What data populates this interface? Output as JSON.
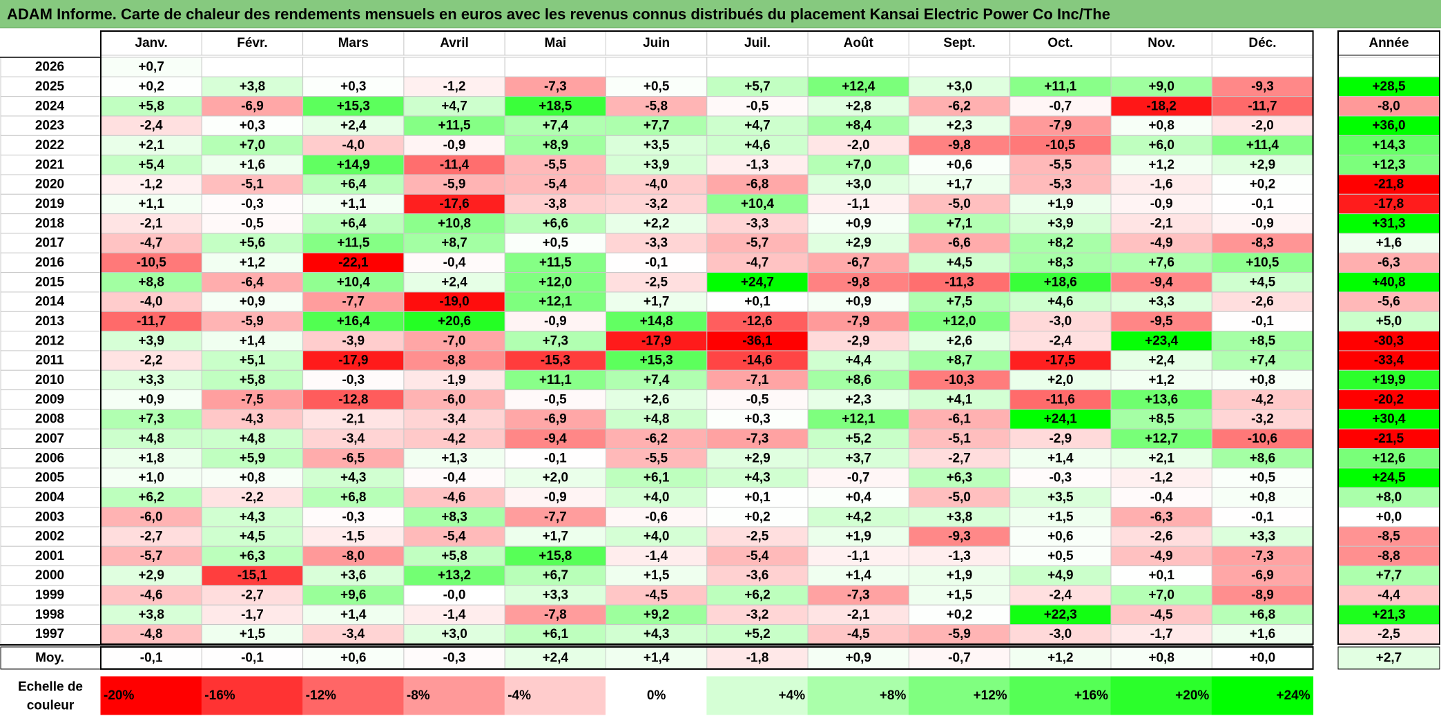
{
  "title": "ADAM Informe. Carte de chaleur des rendements mensuels en euros avec les revenus connus distribués du placement Kansai Electric Power Co Inc/The",
  "chart_data": {
    "type": "heatmap",
    "months": [
      "Janv.",
      "Févr.",
      "Mars",
      "Avril",
      "Mai",
      "Juin",
      "Juil.",
      "Août",
      "Sept.",
      "Oct.",
      "Nov.",
      "Déc."
    ],
    "year_header": "Année",
    "rows": [
      {
        "year": "2026",
        "months": [
          "+0,7",
          "",
          "",
          "",
          "",
          "",
          "",
          "",
          "",
          "",
          "",
          ""
        ],
        "annual": ""
      },
      {
        "year": "2025",
        "months": [
          "+0,2",
          "+3,8",
          "+0,3",
          "-1,2",
          "-7,3",
          "+0,5",
          "+5,7",
          "+12,4",
          "+3,0",
          "+11,1",
          "+9,0",
          "-9,3"
        ],
        "annual": "+28,5"
      },
      {
        "year": "2024",
        "months": [
          "+5,8",
          "-6,9",
          "+15,3",
          "+4,7",
          "+18,5",
          "-5,8",
          "-0,5",
          "+2,8",
          "-6,2",
          "-0,7",
          "-18,2",
          "-11,7"
        ],
        "annual": "-8,0"
      },
      {
        "year": "2023",
        "months": [
          "-2,4",
          "+0,3",
          "+2,4",
          "+11,5",
          "+7,4",
          "+7,7",
          "+4,7",
          "+8,4",
          "+2,3",
          "-7,9",
          "+0,8",
          "-2,0"
        ],
        "annual": "+36,0"
      },
      {
        "year": "2022",
        "months": [
          "+2,1",
          "+7,0",
          "-4,0",
          "-0,9",
          "+8,9",
          "+3,5",
          "+4,6",
          "-2,0",
          "-9,8",
          "-10,5",
          "+6,0",
          "+11,4"
        ],
        "annual": "+14,3"
      },
      {
        "year": "2021",
        "months": [
          "+5,4",
          "+1,6",
          "+14,9",
          "-11,4",
          "-5,5",
          "+3,9",
          "-1,3",
          "+7,0",
          "+0,6",
          "-5,5",
          "+1,2",
          "+2,9"
        ],
        "annual": "+12,3"
      },
      {
        "year": "2020",
        "months": [
          "-1,2",
          "-5,1",
          "+6,4",
          "-5,9",
          "-5,4",
          "-4,0",
          "-6,8",
          "+3,0",
          "+1,7",
          "-5,3",
          "-1,6",
          "+0,2"
        ],
        "annual": "-21,8"
      },
      {
        "year": "2019",
        "months": [
          "+1,1",
          "-0,3",
          "+1,1",
          "-17,6",
          "-3,8",
          "-3,2",
          "+10,4",
          "-1,1",
          "-5,0",
          "+1,9",
          "-0,9",
          "-0,1"
        ],
        "annual": "-17,8"
      },
      {
        "year": "2018",
        "months": [
          "-2,1",
          "-0,5",
          "+6,4",
          "+10,8",
          "+6,6",
          "+2,2",
          "-3,3",
          "+0,9",
          "+7,1",
          "+3,9",
          "-2,1",
          "-0,9"
        ],
        "annual": "+31,3"
      },
      {
        "year": "2017",
        "months": [
          "-4,7",
          "+5,6",
          "+11,5",
          "+8,7",
          "+0,5",
          "-3,3",
          "-5,7",
          "+2,9",
          "-6,6",
          "+8,2",
          "-4,9",
          "-8,3"
        ],
        "annual": "+1,6"
      },
      {
        "year": "2016",
        "months": [
          "-10,5",
          "+1,2",
          "-22,1",
          "-0,4",
          "+11,5",
          "-0,1",
          "-4,7",
          "-6,7",
          "+4,5",
          "+8,3",
          "+7,6",
          "+10,5"
        ],
        "annual": "-6,3"
      },
      {
        "year": "2015",
        "months": [
          "+8,8",
          "-6,4",
          "+10,4",
          "+2,4",
          "+12,0",
          "-2,5",
          "+24,7",
          "-9,8",
          "-11,3",
          "+18,6",
          "-9,4",
          "+4,5"
        ],
        "annual": "+40,8"
      },
      {
        "year": "2014",
        "months": [
          "-4,0",
          "+0,9",
          "-7,7",
          "-19,0",
          "+12,1",
          "+1,7",
          "+0,1",
          "+0,9",
          "+7,5",
          "+4,6",
          "+3,3",
          "-2,6"
        ],
        "annual": "-5,6"
      },
      {
        "year": "2013",
        "months": [
          "-11,7",
          "-5,9",
          "+16,4",
          "+20,6",
          "-0,9",
          "+14,8",
          "-12,6",
          "-7,9",
          "+12,0",
          "-3,0",
          "-9,5",
          "-0,1"
        ],
        "annual": "+5,0"
      },
      {
        "year": "2012",
        "months": [
          "+3,9",
          "+1,4",
          "-3,9",
          "-7,0",
          "+7,3",
          "-17,9",
          "-36,1",
          "-2,9",
          "+2,6",
          "-2,4",
          "+23,4",
          "+8,5"
        ],
        "annual": "-30,3"
      },
      {
        "year": "2011",
        "months": [
          "-2,2",
          "+5,1",
          "-17,9",
          "-8,8",
          "-15,3",
          "+15,3",
          "-14,6",
          "+4,4",
          "+8,7",
          "-17,5",
          "+2,4",
          "+7,4"
        ],
        "annual": "-33,4"
      },
      {
        "year": "2010",
        "months": [
          "+3,3",
          "+5,8",
          "-0,3",
          "-1,9",
          "+11,1",
          "+7,4",
          "-7,1",
          "+8,6",
          "-10,3",
          "+2,0",
          "+1,2",
          "+0,8"
        ],
        "annual": "+19,9"
      },
      {
        "year": "2009",
        "months": [
          "+0,9",
          "-7,5",
          "-12,8",
          "-6,0",
          "-0,5",
          "+2,6",
          "-0,5",
          "+2,3",
          "+4,1",
          "-11,6",
          "+13,6",
          "-4,2"
        ],
        "annual": "-20,2"
      },
      {
        "year": "2008",
        "months": [
          "+7,3",
          "-4,3",
          "-2,1",
          "-3,4",
          "-6,9",
          "+4,8",
          "+0,3",
          "+12,1",
          "-6,1",
          "+24,1",
          "+8,5",
          "-3,2"
        ],
        "annual": "+30,4"
      },
      {
        "year": "2007",
        "months": [
          "+4,8",
          "+4,8",
          "-3,4",
          "-4,2",
          "-9,4",
          "-6,2",
          "-7,3",
          "+5,2",
          "-5,1",
          "-2,9",
          "+12,7",
          "-10,6"
        ],
        "annual": "-21,5"
      },
      {
        "year": "2006",
        "months": [
          "+1,8",
          "+5,9",
          "-6,5",
          "+1,3",
          "-0,1",
          "-5,5",
          "+2,9",
          "+3,7",
          "-2,7",
          "+1,4",
          "+2,1",
          "+8,6"
        ],
        "annual": "+12,6"
      },
      {
        "year": "2005",
        "months": [
          "+1,0",
          "+0,8",
          "+4,3",
          "-0,4",
          "+2,0",
          "+6,1",
          "+4,3",
          "-0,7",
          "+6,3",
          "-0,3",
          "-1,2",
          "+0,5"
        ],
        "annual": "+24,5"
      },
      {
        "year": "2004",
        "months": [
          "+6,2",
          "-2,2",
          "+6,8",
          "-4,6",
          "-0,9",
          "+4,0",
          "+0,1",
          "+0,4",
          "-5,0",
          "+3,5",
          "-0,4",
          "+0,8"
        ],
        "annual": "+8,0"
      },
      {
        "year": "2003",
        "months": [
          "-6,0",
          "+4,3",
          "-0,3",
          "+8,3",
          "-7,7",
          "-0,6",
          "+0,2",
          "+4,2",
          "+3,8",
          "+1,5",
          "-6,3",
          "-0,1"
        ],
        "annual": "+0,0"
      },
      {
        "year": "2002",
        "months": [
          "-2,7",
          "+4,5",
          "-1,5",
          "-5,4",
          "+1,7",
          "+4,0",
          "-2,5",
          "+1,9",
          "-9,3",
          "+0,6",
          "-2,6",
          "+3,3"
        ],
        "annual": "-8,5"
      },
      {
        "year": "2001",
        "months": [
          "-5,7",
          "+6,3",
          "-8,0",
          "+5,8",
          "+15,8",
          "-1,4",
          "-5,4",
          "-1,1",
          "-1,3",
          "+0,5",
          "-4,9",
          "-7,3"
        ],
        "annual": "-8,8"
      },
      {
        "year": "2000",
        "months": [
          "+2,9",
          "-15,1",
          "+3,6",
          "+13,2",
          "+6,7",
          "+1,5",
          "-3,6",
          "+1,4",
          "+1,9",
          "+4,9",
          "+0,1",
          "-6,9"
        ],
        "annual": "+7,7"
      },
      {
        "year": "1999",
        "months": [
          "-4,6",
          "-2,7",
          "+9,6",
          "-0,0",
          "+3,3",
          "-4,5",
          "+6,2",
          "-7,3",
          "+1,5",
          "-2,4",
          "+7,0",
          "-8,9"
        ],
        "annual": "-4,4"
      },
      {
        "year": "1998",
        "months": [
          "+3,8",
          "-1,7",
          "+1,4",
          "-1,4",
          "-7,8",
          "+9,2",
          "-3,2",
          "-2,1",
          "+0,2",
          "+22,3",
          "-4,5",
          "+6,8"
        ],
        "annual": "+21,3"
      },
      {
        "year": "1997",
        "months": [
          "-4,8",
          "+1,5",
          "-3,4",
          "+3,0",
          "+6,1",
          "+4,3",
          "+5,2",
          "-4,5",
          "-5,9",
          "-3,0",
          "-1,7",
          "+1,6"
        ],
        "annual": "-2,5"
      }
    ],
    "average": {
      "label": "Moy.",
      "months": [
        "-0,1",
        "-0,1",
        "+0,6",
        "-0,3",
        "+2,4",
        "+1,4",
        "-1,8",
        "+0,9",
        "-0,7",
        "+1,2",
        "+0,8",
        "+0,0"
      ],
      "annual": "+2,7"
    },
    "scale": {
      "label_line1": "Echelle de",
      "label_line2": "couleur",
      "stops": [
        "-20%",
        "-16%",
        "-12%",
        "-8%",
        "-4%",
        "0%",
        "+4%",
        "+8%",
        "+12%",
        "+16%",
        "+20%",
        "+24%"
      ],
      "stop_values": [
        -20,
        -16,
        -12,
        -8,
        -4,
        0,
        4,
        8,
        12,
        16,
        20,
        24
      ]
    },
    "colors": {
      "negative_max": "#ff0000",
      "positive_max": "#00ff00",
      "neutral": "#ffffff",
      "title_background": "#86c97f"
    }
  }
}
